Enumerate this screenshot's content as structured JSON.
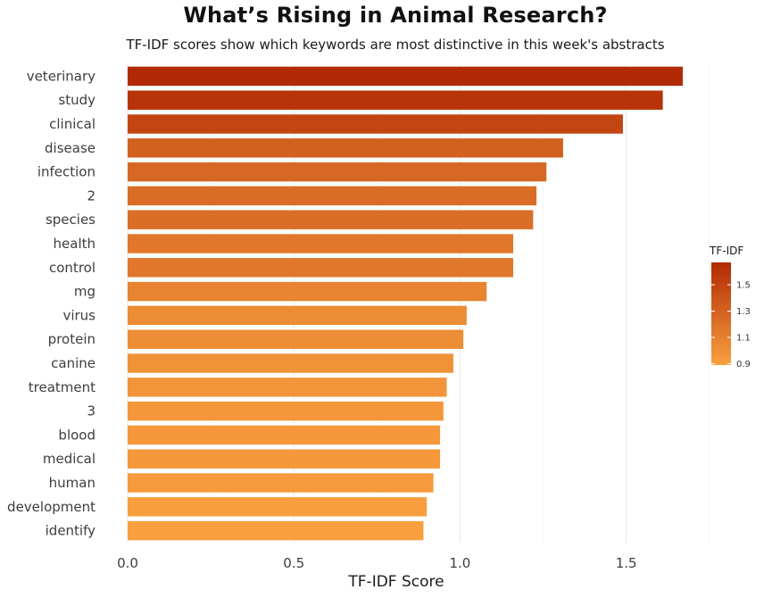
{
  "chart_data": {
    "type": "bar",
    "orientation": "horizontal",
    "title": "What’s Rising in Animal Research?",
    "subtitle": "TF-IDF scores show which keywords are most distinctive in this week's abstracts",
    "xlabel": "TF-IDF Score",
    "ylabel": "",
    "xlim": [
      0,
      1.85
    ],
    "x_ticks": [
      "0.0",
      "0.5",
      "1.0",
      "1.5"
    ],
    "x_tick_values": [
      0,
      0.5,
      1.0,
      1.5
    ],
    "grid": "vertical",
    "categories": [
      "veterinary",
      "study",
      "clinical",
      "disease",
      "infection",
      "2",
      "species",
      "health",
      "control",
      "mg",
      "virus",
      "protein",
      "canine",
      "treatment",
      "3",
      "blood",
      "medical",
      "human",
      "development",
      "identify"
    ],
    "values": [
      1.67,
      1.61,
      1.49,
      1.31,
      1.26,
      1.23,
      1.22,
      1.16,
      1.16,
      1.08,
      1.02,
      1.01,
      0.98,
      0.96,
      0.95,
      0.94,
      0.94,
      0.92,
      0.9,
      0.89
    ],
    "legend": {
      "title": "TF-IDF",
      "position": "right",
      "range": [
        0.89,
        1.67
      ],
      "ticks": [
        "0.9",
        "1.1",
        "1.3",
        "1.5"
      ],
      "tick_values": [
        0.9,
        1.1,
        1.3,
        1.5
      ],
      "color_low": "#f8a03f",
      "color_high": "#b22a04"
    }
  }
}
